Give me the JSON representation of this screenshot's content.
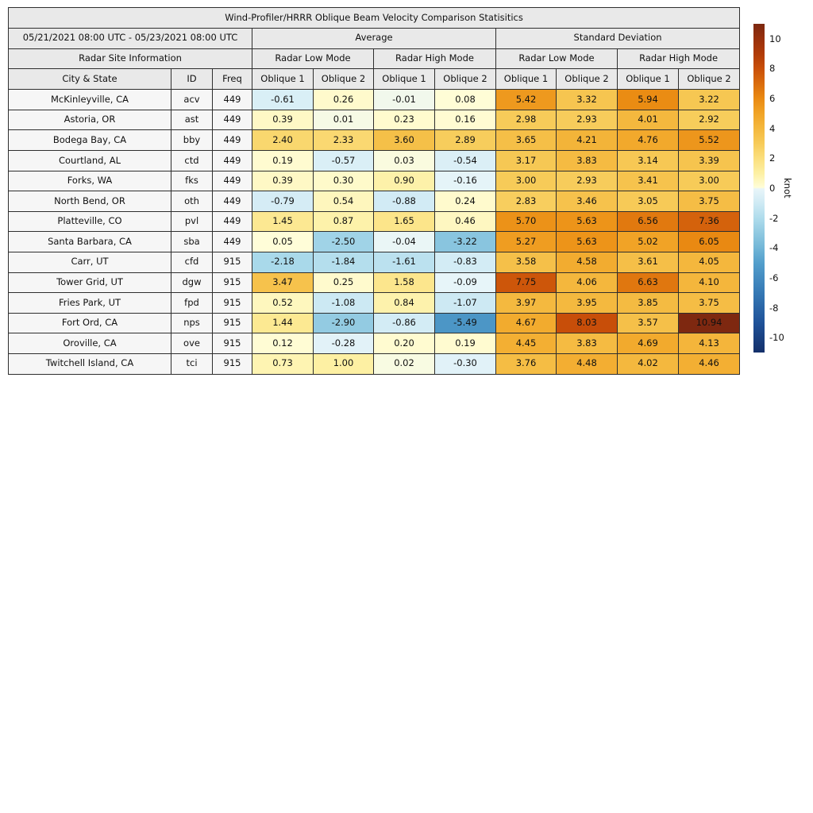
{
  "chart_data": {
    "type": "table",
    "title": "Wind-Profiler/HRRR Oblique Beam Velocity Comparison Statisitics",
    "date_range": "05/21/2021 08:00 UTC - 05/23/2021 08:00 UTC",
    "section_headers": [
      "Average",
      "Standard Deviation"
    ],
    "site_info_header": "Radar Site Information",
    "mode_headers": [
      "Radar Low Mode",
      "Radar High Mode",
      "Radar Low Mode",
      "Radar High Mode"
    ],
    "column_headers": [
      "City & State",
      "ID",
      "Freq",
      "Oblique 1",
      "Oblique 2",
      "Oblique 1",
      "Oblique 2",
      "Oblique 1",
      "Oblique 2",
      "Oblique 1",
      "Oblique 2"
    ],
    "rows": [
      {
        "city": "McKinleyville, CA",
        "id": "acv",
        "freq": "449",
        "values": [
          -0.61,
          0.26,
          -0.01,
          0.08,
          5.42,
          3.32,
          5.94,
          3.22
        ]
      },
      {
        "city": "Astoria, OR",
        "id": "ast",
        "freq": "449",
        "values": [
          0.39,
          0.01,
          0.23,
          0.16,
          2.98,
          2.93,
          4.01,
          2.92
        ]
      },
      {
        "city": "Bodega Bay, CA",
        "id": "bby",
        "freq": "449",
        "values": [
          2.4,
          2.33,
          3.6,
          2.89,
          3.65,
          4.21,
          4.76,
          5.52
        ]
      },
      {
        "city": "Courtland, AL",
        "id": "ctd",
        "freq": "449",
        "values": [
          0.19,
          -0.57,
          0.03,
          -0.54,
          3.17,
          3.83,
          3.14,
          3.39
        ]
      },
      {
        "city": "Forks, WA",
        "id": "fks",
        "freq": "449",
        "values": [
          0.39,
          0.3,
          0.9,
          -0.16,
          3.0,
          2.93,
          3.41,
          3.0
        ]
      },
      {
        "city": "North Bend, OR",
        "id": "oth",
        "freq": "449",
        "values": [
          -0.79,
          0.54,
          -0.88,
          0.24,
          2.83,
          3.46,
          3.05,
          3.75
        ]
      },
      {
        "city": "Platteville, CO",
        "id": "pvl",
        "freq": "449",
        "values": [
          1.45,
          0.87,
          1.65,
          0.46,
          5.7,
          5.63,
          6.56,
          7.36
        ]
      },
      {
        "city": "Santa Barbara, CA",
        "id": "sba",
        "freq": "449",
        "values": [
          0.05,
          -2.5,
          -0.04,
          -3.22,
          5.27,
          5.63,
          5.02,
          6.05
        ]
      },
      {
        "city": "Carr, UT",
        "id": "cfd",
        "freq": "915",
        "values": [
          -2.18,
          -1.84,
          -1.61,
          -0.83,
          3.58,
          4.58,
          3.61,
          4.05
        ]
      },
      {
        "city": "Tower Grid, UT",
        "id": "dgw",
        "freq": "915",
        "values": [
          3.47,
          0.25,
          1.58,
          -0.09,
          7.75,
          4.06,
          6.63,
          4.1
        ]
      },
      {
        "city": "Fries Park, UT",
        "id": "fpd",
        "freq": "915",
        "values": [
          0.52,
          -1.08,
          0.84,
          -1.07,
          3.97,
          3.95,
          3.85,
          3.75
        ]
      },
      {
        "city": "Fort Ord, CA",
        "id": "nps",
        "freq": "915",
        "values": [
          1.44,
          -2.9,
          -0.86,
          -5.49,
          4.67,
          8.03,
          3.57,
          10.94
        ]
      },
      {
        "city": "Oroville, CA",
        "id": "ove",
        "freq": "915",
        "values": [
          0.12,
          -0.28,
          0.2,
          0.19,
          4.45,
          3.83,
          4.69,
          4.13
        ]
      },
      {
        "city": "Twitchell Island, CA",
        "id": "tci",
        "freq": "915",
        "values": [
          0.73,
          1.0,
          0.02,
          -0.3,
          3.76,
          4.48,
          4.02,
          4.46
        ]
      }
    ],
    "colorbar": {
      "label": "knot",
      "ticks": [
        10,
        8,
        6,
        4,
        2,
        0,
        -2,
        -4,
        -6,
        -8,
        -10
      ],
      "vmin": -11,
      "vmax": 11
    },
    "colormap_stops": [
      [
        -11,
        "#14306a"
      ],
      [
        -9,
        "#1f5299"
      ],
      [
        -7,
        "#3579b5"
      ],
      [
        -5,
        "#539fcc"
      ],
      [
        -4,
        "#72b6d7"
      ],
      [
        -3,
        "#90c9e1"
      ],
      [
        -2,
        "#afdcec"
      ],
      [
        -1,
        "#cfeaf4"
      ],
      [
        -0.05,
        "#e8f5f9"
      ],
      [
        0.05,
        "#fffdd8"
      ],
      [
        1,
        "#fdf0a3"
      ],
      [
        2,
        "#fbdf7d"
      ],
      [
        3,
        "#f7cb58"
      ],
      [
        4,
        "#f4b83e"
      ],
      [
        5,
        "#f1a426"
      ],
      [
        6,
        "#ea8a12"
      ],
      [
        7,
        "#da6c0d"
      ],
      [
        8,
        "#c94f09"
      ],
      [
        9,
        "#b03b08"
      ],
      [
        10,
        "#99300c"
      ],
      [
        11,
        "#7c2810"
      ]
    ],
    "styles": {
      "header_bg": "#e9e9e9",
      "label_bg": "#f6f6f6",
      "border": "#2e2e2e"
    }
  }
}
